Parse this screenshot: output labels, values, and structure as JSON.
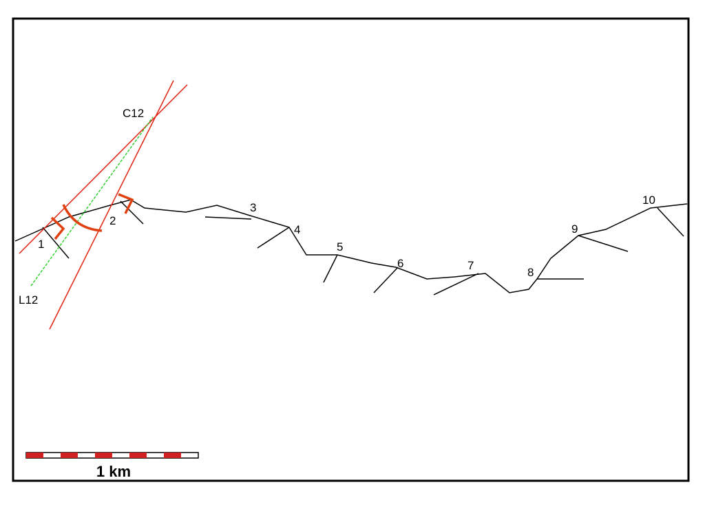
{
  "point_labels": [
    "1",
    "2",
    "3",
    "4",
    "5",
    "6",
    "7",
    "8",
    "9",
    "10"
  ],
  "intersection_label": "C12",
  "line_label": "L12",
  "scale_bar_label": "1 km"
}
